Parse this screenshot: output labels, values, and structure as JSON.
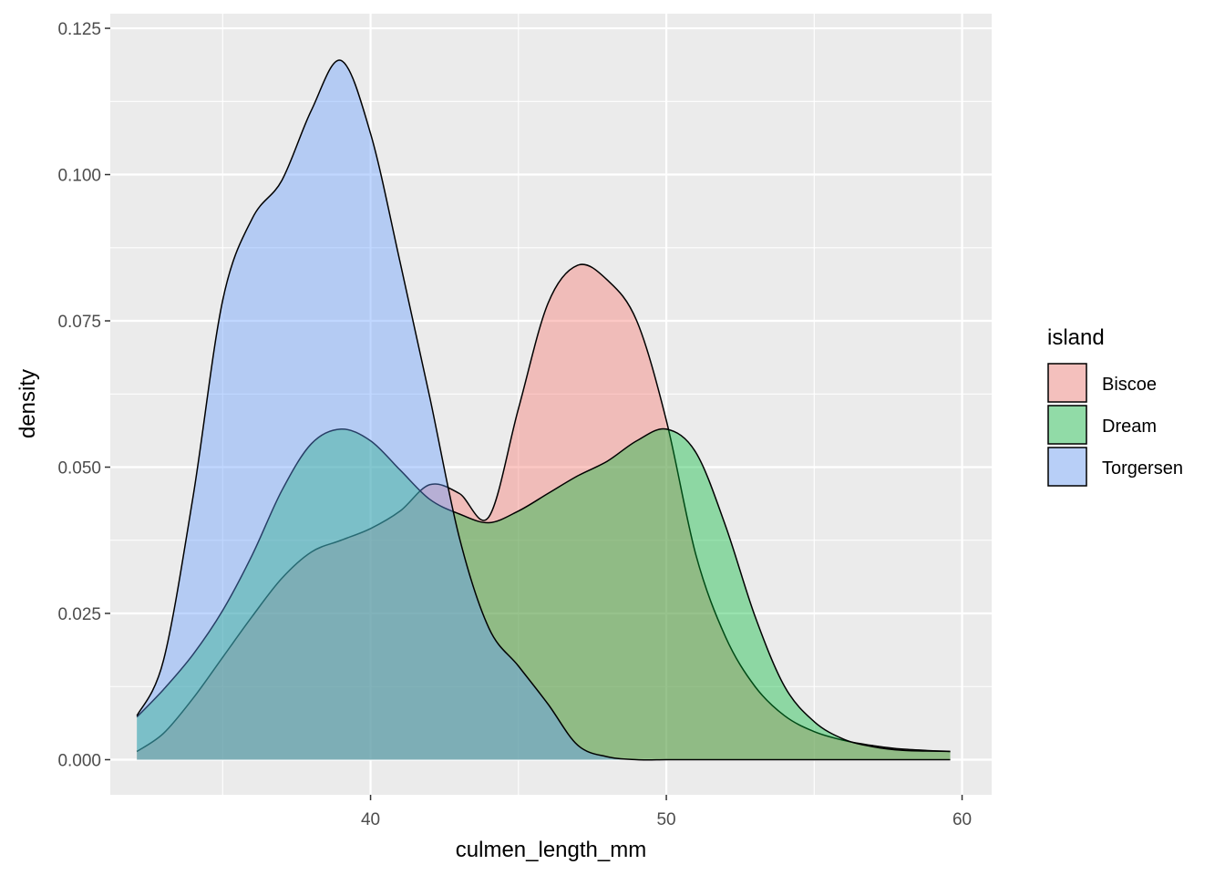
{
  "chart_data": {
    "type": "area",
    "title": "",
    "xlabel": "culmen_length_mm",
    "ylabel": "density",
    "xlim": [
      31.2,
      61.0
    ],
    "ylim": [
      -0.006,
      0.1275
    ],
    "x_ticks": [
      40,
      50,
      60
    ],
    "x_tick_labels": [
      "40",
      "50",
      "60"
    ],
    "y_ticks": [
      0.0,
      0.025,
      0.05,
      0.075,
      0.1,
      0.125
    ],
    "y_tick_labels": [
      "0.000",
      "0.025",
      "0.050",
      "0.075",
      "0.100",
      "0.125"
    ],
    "grid": true,
    "legend": {
      "title": "island",
      "position": "right"
    },
    "series": [
      {
        "name": "Biscoe",
        "color": "#F8766D",
        "x": [
          32.1,
          33,
          34,
          35,
          36,
          37,
          38,
          39,
          40,
          41,
          42,
          43,
          44,
          45,
          46,
          47,
          48,
          49,
          50,
          51,
          52,
          53,
          54,
          55,
          56,
          57,
          58,
          59.6
        ],
        "y": [
          0.0014,
          0.0045,
          0.0105,
          0.0175,
          0.0245,
          0.031,
          0.0355,
          0.0375,
          0.0395,
          0.0425,
          0.047,
          0.0455,
          0.0415,
          0.06,
          0.078,
          0.0845,
          0.082,
          0.075,
          0.058,
          0.035,
          0.021,
          0.0125,
          0.0075,
          0.0048,
          0.0033,
          0.0024,
          0.0018,
          0.0014
        ]
      },
      {
        "name": "Dream",
        "color": "#00BA38",
        "x": [
          32.1,
          33,
          34,
          35,
          36,
          37,
          38,
          39,
          40,
          41,
          42,
          43,
          44,
          45,
          46,
          47,
          48,
          49,
          50,
          51,
          52,
          53,
          54,
          55,
          56,
          57,
          58,
          59.6
        ],
        "y": [
          0.0073,
          0.012,
          0.018,
          0.0255,
          0.035,
          0.046,
          0.054,
          0.0565,
          0.0545,
          0.0495,
          0.0445,
          0.042,
          0.0405,
          0.0425,
          0.0455,
          0.0485,
          0.051,
          0.0545,
          0.0565,
          0.0525,
          0.04,
          0.0245,
          0.0125,
          0.0065,
          0.0035,
          0.0022,
          0.0016,
          0.0014
        ]
      },
      {
        "name": "Torgersen",
        "color": "#619CFF",
        "x": [
          32.1,
          33,
          34,
          35,
          36,
          37,
          38,
          39,
          40,
          41,
          42,
          43,
          44,
          45,
          46,
          47,
          48,
          49,
          50,
          51,
          52,
          53,
          54,
          55,
          56,
          57,
          58,
          59.6
        ],
        "y": [
          0.0075,
          0.017,
          0.045,
          0.0785,
          0.0925,
          0.099,
          0.111,
          0.1195,
          0.107,
          0.085,
          0.062,
          0.038,
          0.0225,
          0.016,
          0.0095,
          0.0025,
          0.0005,
          0.0,
          0.0,
          0.0,
          0.0,
          0.0,
          0.0,
          0.0,
          0.0,
          0.0,
          0.0,
          0.0
        ]
      }
    ]
  }
}
